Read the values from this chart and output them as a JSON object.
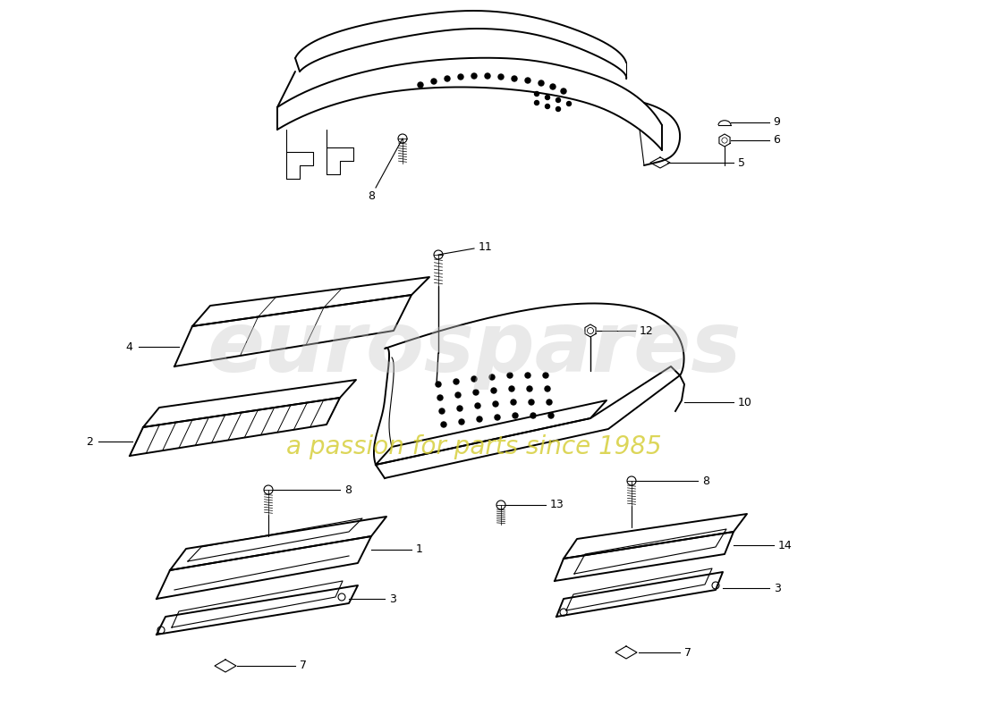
{
  "background_color": "#ffffff",
  "line_color": "#000000",
  "label_color": "#000000",
  "watermark_color1": "#c8c8c8",
  "watermark_color2": "#d4cc30",
  "lw_main": 1.4,
  "lw_thin": 0.8,
  "label_fontsize": 9,
  "watermark_text": "eurospares",
  "watermark_subtext": "a passion for parts since 1985"
}
